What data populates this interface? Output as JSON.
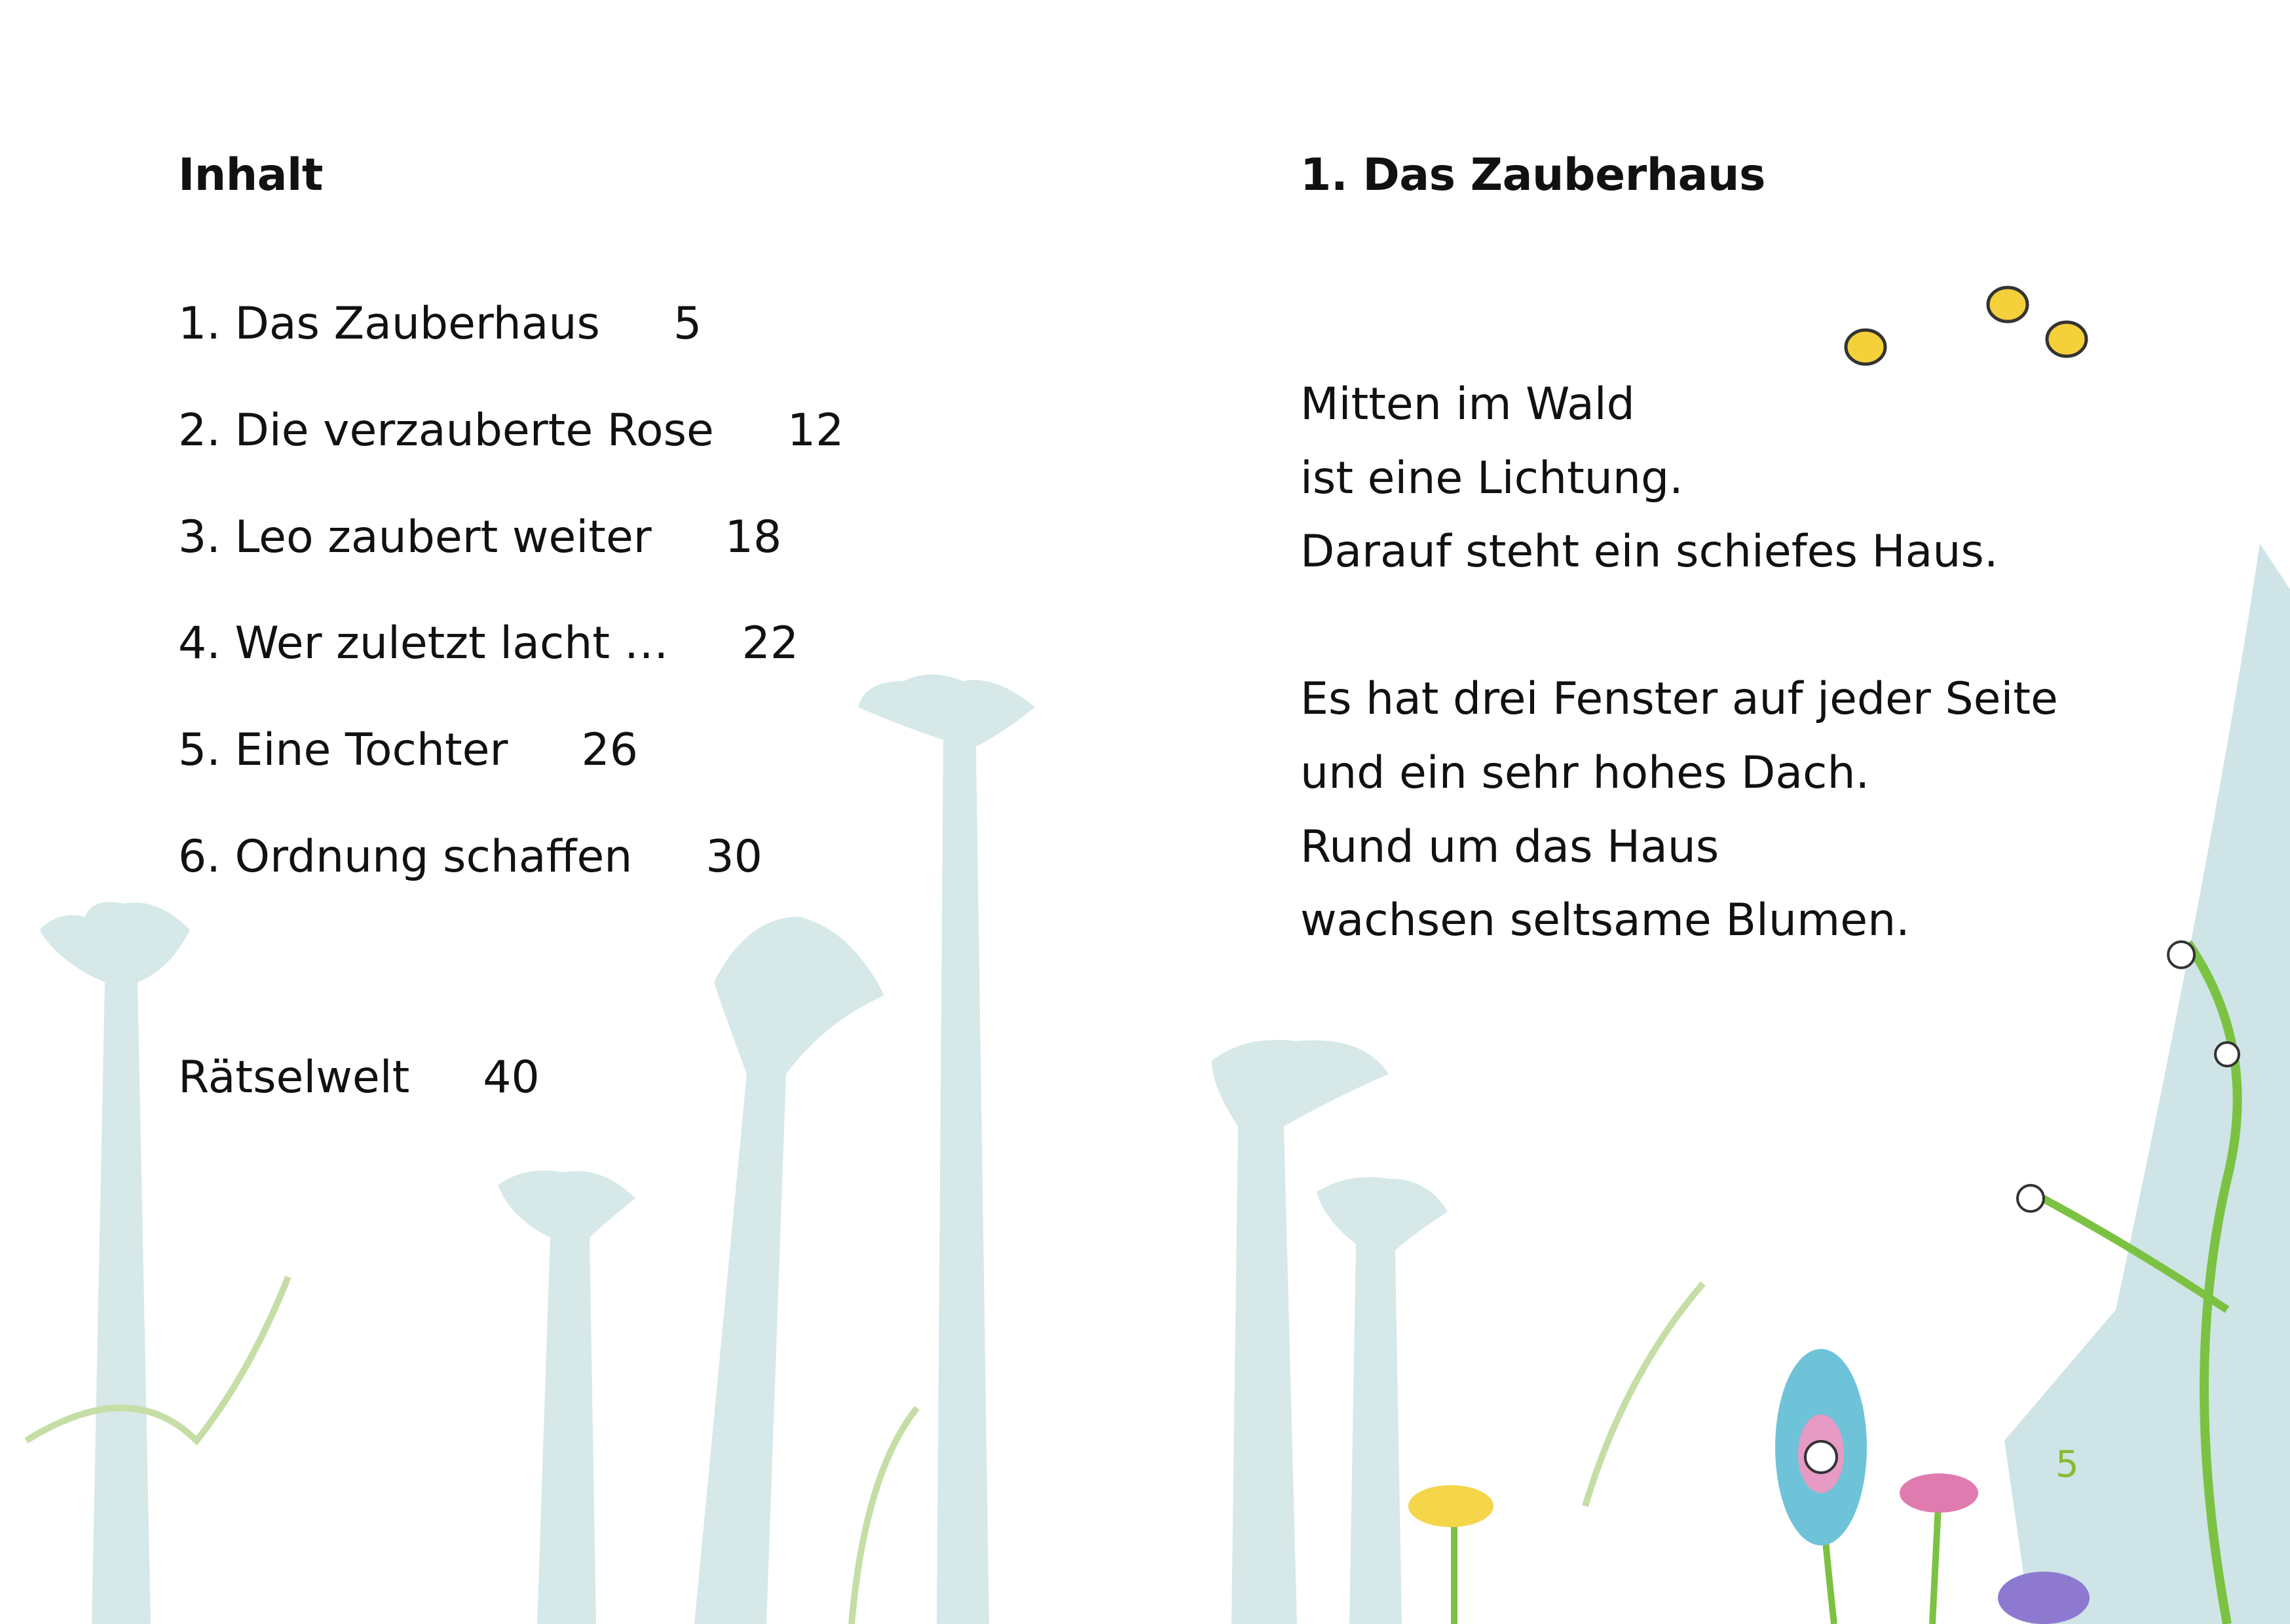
{
  "left_page": {
    "heading": "Inhalt",
    "toc": [
      {
        "title": "1. Das Zauberhaus",
        "page": "5"
      },
      {
        "title": "2. Die verzauberte Rose",
        "page": "12"
      },
      {
        "title": "3. Leo zaubert weiter",
        "page": "18"
      },
      {
        "title": "4. Wer zuletzt lacht …",
        "page": "22"
      },
      {
        "title": "5. Eine Tochter",
        "page": "26"
      },
      {
        "title": "6. Ordnung schaffen",
        "page": "30"
      }
    ],
    "extra": {
      "title": "Rätselwelt",
      "page": "40"
    }
  },
  "right_page": {
    "heading": "1. Das Zauberhaus",
    "paragraphs": [
      [
        "Mitten im Wald",
        "ist eine Lichtung.",
        "Darauf steht ein schiefes Haus."
      ],
      [
        "Es hat drei Fenster auf jeder Seite",
        "und ein sehr hohes Dach.",
        "Rund um das Haus",
        "wachsen seltsame Blumen."
      ]
    ],
    "page_number": "5"
  },
  "colors": {
    "text": "#111111",
    "page_number": "#8ab832",
    "tree_silhouette": "#cfe3e4",
    "vine_green": "#7cc242",
    "house": "#cfe4e6"
  }
}
